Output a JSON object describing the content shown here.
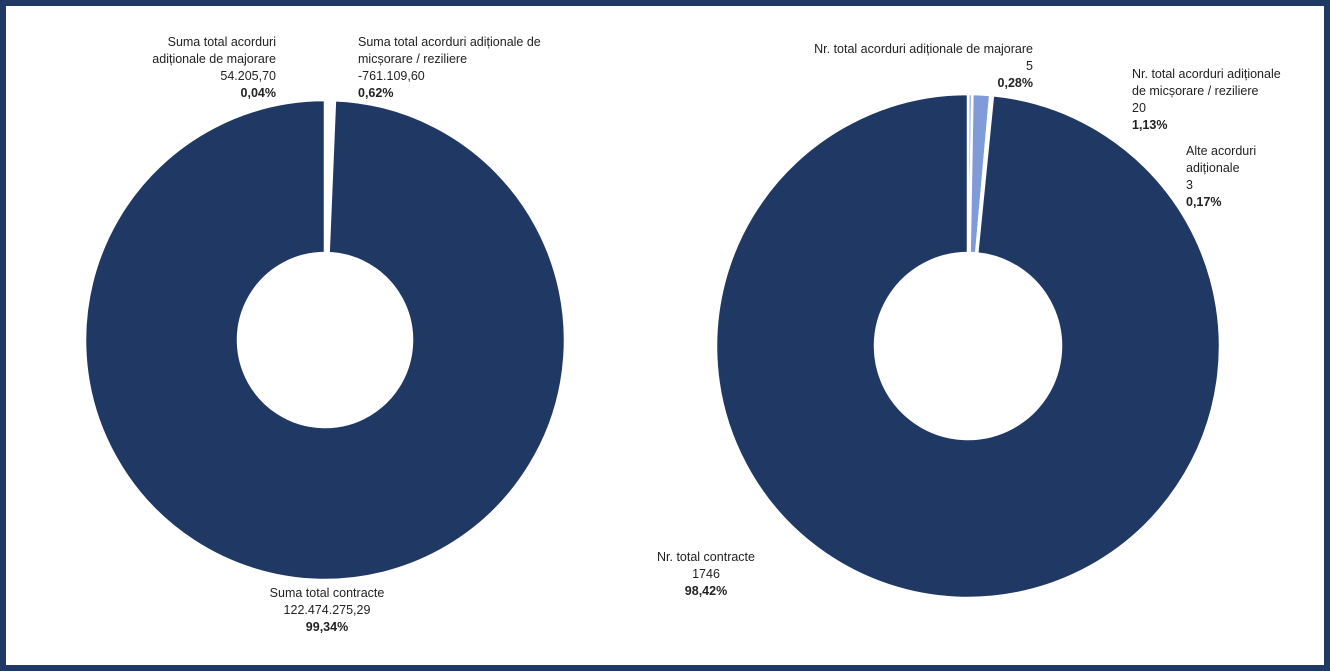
{
  "colors": {
    "frame": "#1f3864",
    "main": "#203864",
    "alt": "#8faadc",
    "alt2": "#7f9bd8"
  },
  "chart_data": [
    {
      "type": "pie",
      "donut": true,
      "slices": [
        {
          "label": [
            "Suma total acorduri",
            "adiționale de majorare"
          ],
          "value_text": "54.205,70",
          "value": 54205.7,
          "percent": 0.04,
          "percent_text": "0,04%",
          "color": "#8faadc"
        },
        {
          "label": [
            "Suma total acorduri adiționale de",
            "micșorare / reziliere"
          ],
          "value_text": "-761.109,60",
          "value": -761109.6,
          "percent": 0.62,
          "percent_text": "0,62%",
          "color": "#ffffff"
        },
        {
          "label": [
            "Suma total contracte"
          ],
          "value_text": "122.474.275,29",
          "value": 122474275.29,
          "percent": 99.34,
          "percent_text": "99,34%",
          "color": "#203864"
        }
      ]
    },
    {
      "type": "pie",
      "donut": true,
      "slices": [
        {
          "label": [
            "Nr. total acorduri adiționale de majorare"
          ],
          "value_text": "5",
          "value": 5,
          "percent": 0.28,
          "percent_text": "0,28%",
          "color": "#a9bde6"
        },
        {
          "label": [
            "Nr. total acorduri adiționale",
            "de micșorare / reziliere"
          ],
          "value_text": "20",
          "value": 20,
          "percent": 1.13,
          "percent_text": "1,13%",
          "color": "#7f9bd8"
        },
        {
          "label": [
            "Alte acorduri",
            "adiționale"
          ],
          "value_text": "3",
          "value": 3,
          "percent": 0.17,
          "percent_text": "0,17%",
          "color": "#b4c7e7"
        },
        {
          "label": [
            "Nr. total contracte"
          ],
          "value_text": "1746",
          "value": 1746,
          "percent": 98.42,
          "percent_text": "98,42%",
          "color": "#203864"
        }
      ]
    }
  ]
}
